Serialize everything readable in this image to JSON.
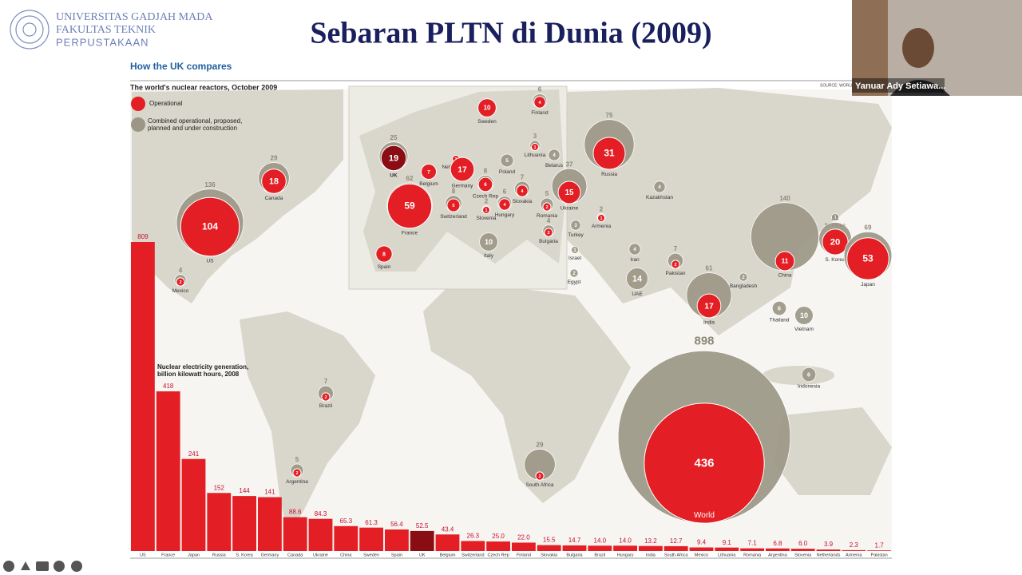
{
  "header": {
    "university": "UNIVERSITAS GADJAH MADA",
    "faculty": "FAKULTAS TEKNIK",
    "unit": "PERPUSTAKAAN",
    "title": "Sebaran PLTN di Dunia (2009)"
  },
  "video": {
    "name": "Yanuar Ady Setiawa..."
  },
  "chart_data": [
    {
      "type": "bubble",
      "title": "How the UK compares",
      "subtitle": "The world's nuclear reactors, October 2009",
      "source": "SOURCE: WORLD",
      "highlight": "UK",
      "highlight_color": "#8b0d14",
      "series": [
        {
          "name": "Operational",
          "color": "#e31e24"
        },
        {
          "name": "Combined operational, proposed, planned and under construction",
          "color": "#9b9685"
        }
      ],
      "points": [
        {
          "name": "US",
          "operational": 104,
          "combined": 136
        },
        {
          "name": "Canada",
          "operational": 18,
          "combined": 29
        },
        {
          "name": "Mexico",
          "operational": 2,
          "combined": 4
        },
        {
          "name": "Brazil",
          "operational": 2,
          "combined": 7
        },
        {
          "name": "Argentina",
          "operational": 2,
          "combined": 5
        },
        {
          "name": "UK",
          "operational": 19,
          "combined": 25
        },
        {
          "name": "France",
          "operational": 59,
          "combined": 62
        },
        {
          "name": "Spain",
          "operational": 8,
          "combined": null
        },
        {
          "name": "Belgium",
          "operational": 7,
          "combined": null
        },
        {
          "name": "Netherlands",
          "operational": 1,
          "combined": null
        },
        {
          "name": "Germany",
          "operational": 17,
          "combined": null
        },
        {
          "name": "Switzerland",
          "operational": 5,
          "combined": 8
        },
        {
          "name": "Sweden",
          "operational": 10,
          "combined": null
        },
        {
          "name": "Finland",
          "operational": 4,
          "combined": 6
        },
        {
          "name": "Lithuania",
          "operational": 1,
          "combined": 3
        },
        {
          "name": "Belarus",
          "operational": null,
          "combined": 4
        },
        {
          "name": "Poland",
          "operational": null,
          "combined": 5
        },
        {
          "name": "Czech Rep",
          "operational": 6,
          "combined": 8
        },
        {
          "name": "Slovakia",
          "operational": 4,
          "combined": 7
        },
        {
          "name": "Slovenia",
          "operational": 1,
          "combined": 2
        },
        {
          "name": "Hungary",
          "operational": 4,
          "combined": 6
        },
        {
          "name": "Romania",
          "operational": 2,
          "combined": 5
        },
        {
          "name": "Bulgaria",
          "operational": 2,
          "combined": 4
        },
        {
          "name": "Italy",
          "operational": null,
          "combined": 10
        },
        {
          "name": "Ukraine",
          "operational": 15,
          "combined": 37
        },
        {
          "name": "Russia",
          "operational": 31,
          "combined": 75
        },
        {
          "name": "Turkey",
          "operational": null,
          "combined": 3
        },
        {
          "name": "Armenia",
          "operational": 1,
          "combined": 2
        },
        {
          "name": "Israel",
          "operational": null,
          "combined": 1
        },
        {
          "name": "Egypt",
          "operational": null,
          "combined": 2
        },
        {
          "name": "Iran",
          "operational": null,
          "combined": 4
        },
        {
          "name": "Kazakhstan",
          "operational": null,
          "combined": 4
        },
        {
          "name": "Pakistan",
          "operational": 2,
          "combined": 7
        },
        {
          "name": "UAE",
          "operational": null,
          "combined": 14
        },
        {
          "name": "India",
          "operational": 17,
          "combined": 61
        },
        {
          "name": "Bangladesh",
          "operational": null,
          "combined": 2
        },
        {
          "name": "China",
          "operational": 11,
          "combined": 140
        },
        {
          "name": "N. Korea",
          "operational": null,
          "combined": 1
        },
        {
          "name": "S. Korea",
          "operational": 20,
          "combined": 32
        },
        {
          "name": "Japan",
          "operational": 53,
          "combined": 69
        },
        {
          "name": "Thailand",
          "operational": null,
          "combined": 6
        },
        {
          "name": "Vietnam",
          "operational": null,
          "combined": 10
        },
        {
          "name": "Indonesia",
          "operational": null,
          "combined": 6
        },
        {
          "name": "South Africa",
          "operational": 2,
          "combined": 29
        },
        {
          "name": "World",
          "operational": 436,
          "combined": 898
        }
      ]
    },
    {
      "type": "bar",
      "title": "Nuclear electricity generation, billion kilowatt hours, 2008",
      "color": "#e31e24",
      "highlight": "UK",
      "highlight_color": "#8b0d14",
      "categories": [
        "US",
        "France",
        "Japan",
        "Russia",
        "S. Korea",
        "Germany",
        "Canada",
        "Ukraine",
        "China",
        "Sweden",
        "Spain",
        "UK",
        "Belgium",
        "Switzerland",
        "Czech Rep",
        "Finland",
        "Slovakia",
        "Bulgaria",
        "Brazil",
        "Hungary",
        "India",
        "South Africa",
        "Mexico",
        "Lithuania",
        "Romania",
        "Argentina",
        "Slovenia",
        "Netherlands",
        "Armenia",
        "Pakistan"
      ],
      "values": [
        809,
        418,
        241,
        152,
        144,
        141,
        88.6,
        84.3,
        65.3,
        61.3,
        56.4,
        52.5,
        43.4,
        26.3,
        25.0,
        22.0,
        15.5,
        14.7,
        14.0,
        14.0,
        13.2,
        12.7,
        9.4,
        9.1,
        7.1,
        6.8,
        6.0,
        3.9,
        2.3,
        1.7
      ],
      "value_labels": [
        "809",
        "418",
        "241",
        "152",
        "144",
        "141",
        "88.6",
        "84.3",
        "65.3",
        "61.3",
        "56.4",
        "52.5",
        "43.4",
        "26.3",
        "25.0",
        "22.0",
        "15.5",
        "14.7",
        "14.0",
        "14.0",
        "13.2",
        "12.7",
        "9.4",
        "9.1",
        "7.1",
        "6.8",
        "6.0",
        "3.9",
        "2.3",
        "1.7"
      ]
    }
  ]
}
